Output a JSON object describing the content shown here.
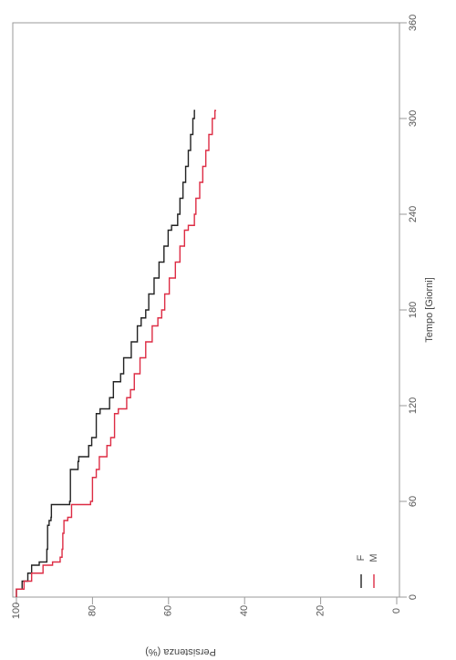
{
  "chart_data": {
    "type": "line",
    "step": true,
    "orientation": "rotated-90-clockwise",
    "xlabel": "Tempo [Giorni]",
    "ylabel": "Persistenza (%)",
    "xlim": [
      0,
      360
    ],
    "ylim": [
      0,
      100
    ],
    "xticks": [
      "0",
      "60",
      "120",
      "180",
      "240",
      "300",
      "360"
    ],
    "yticks": [
      "0",
      "20",
      "40",
      "60",
      "80",
      "100"
    ],
    "legend_position": "bottom-right",
    "series": [
      {
        "name": "F",
        "color": "#222222",
        "x": [
          0,
          5,
          10,
          15,
          20,
          22,
          30,
          45,
          48,
          50,
          58,
          60,
          80,
          85,
          88,
          95,
          100,
          115,
          118,
          125,
          135,
          140,
          150,
          160,
          170,
          175,
          180,
          190,
          200,
          210,
          220,
          230,
          233,
          240,
          250,
          260,
          270,
          280,
          290,
          300,
          305
        ],
        "y": [
          100,
          98.5,
          97,
          96,
          94,
          92,
          91.8,
          91.4,
          90.9,
          90.8,
          86,
          85.8,
          83.8,
          83.6,
          81,
          80.2,
          79,
          78,
          75.5,
          74.5,
          72.6,
          71.8,
          69.8,
          68.2,
          67.2,
          66,
          65.2,
          63.8,
          62.5,
          61.2,
          60.1,
          59.2,
          57.6,
          57,
          56.2,
          55.5,
          54.8,
          54.2,
          53.6,
          53.2,
          53
        ]
      },
      {
        "name": "M",
        "color": "#dd2c44",
        "x": [
          0,
          5,
          10,
          15,
          20,
          22,
          25,
          30,
          40,
          48,
          50,
          58,
          60,
          75,
          80,
          88,
          95,
          100,
          115,
          118,
          125,
          130,
          140,
          150,
          160,
          170,
          175,
          180,
          190,
          200,
          210,
          220,
          230,
          233,
          240,
          250,
          260,
          270,
          280,
          290,
          300,
          305
        ],
        "y": [
          100,
          98,
          96,
          93,
          90.5,
          88.5,
          88,
          87.8,
          87.5,
          86.5,
          85.5,
          80.5,
          80,
          79,
          78.2,
          76.2,
          75.2,
          74.2,
          73.2,
          71,
          70,
          69,
          67.5,
          66,
          64.3,
          62.8,
          61.8,
          61,
          59.8,
          58.2,
          57,
          55.8,
          54.8,
          53.2,
          52.8,
          51.8,
          51,
          50.2,
          49.4,
          48.5,
          47.8,
          47.5
        ]
      }
    ]
  }
}
